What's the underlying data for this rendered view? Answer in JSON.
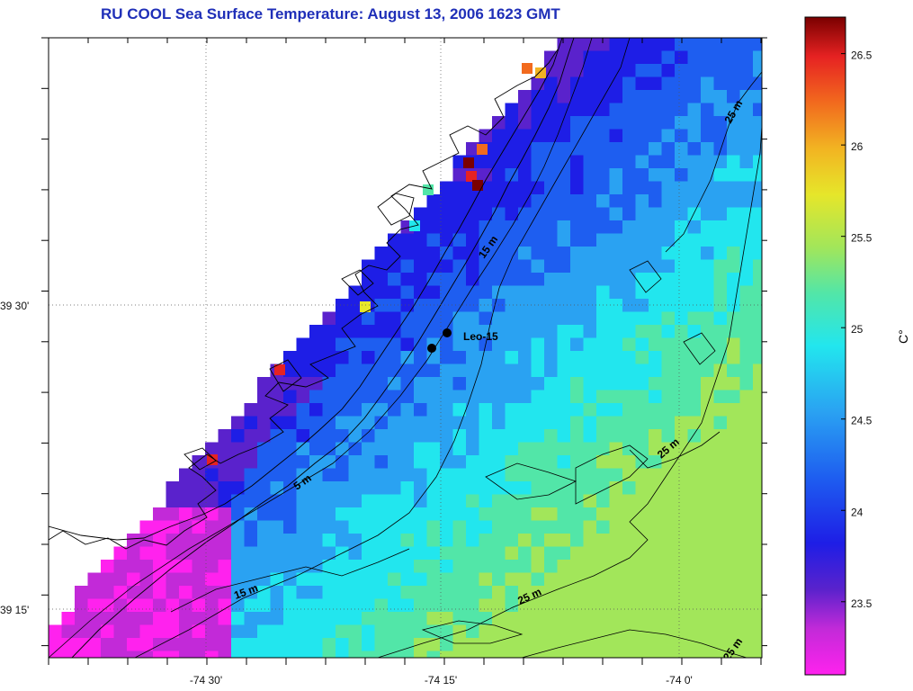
{
  "title": "RU COOL  Sea Surface Temperature:  August 13, 2006 1623 GMT",
  "station_label": "Leo-15",
  "lat_labels": [
    "39 30'",
    "39 15'"
  ],
  "lon_labels": [
    "-74 30'",
    "-74 15'",
    "-74 0'"
  ],
  "contour_labels": [
    "5 m",
    "15 m",
    "15 m",
    "25 m",
    "25 m",
    "25 m",
    "25 m"
  ],
  "colorbar": {
    "unit_label": "C°",
    "ticks": [
      "26.5",
      "26",
      "25.5",
      "25",
      "24.5",
      "24",
      "23.5"
    ],
    "min": 23.1,
    "max": 26.7,
    "colors": [
      "#ff22ee",
      "#c22ad8",
      "#5a22cc",
      "#1e1ee6",
      "#1e5ef0",
      "#2aa2f2",
      "#22e6ee",
      "#52e6a8",
      "#a2e65a",
      "#e6e62a",
      "#f2b422",
      "#f26a1e",
      "#e62222",
      "#7a0000"
    ]
  }
}
